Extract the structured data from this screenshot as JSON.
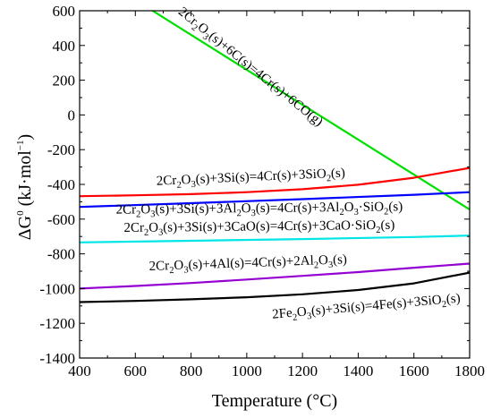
{
  "chart_data": {
    "type": "line",
    "xlabel": "Temperature (°C)",
    "ylabel": "ΔG⁰ (kJ·mol⁻¹)",
    "xlim": [
      400,
      1800
    ],
    "ylim": [
      -1400,
      600
    ],
    "x_ticks": [
      400,
      600,
      800,
      1000,
      1200,
      1400,
      1600,
      1800
    ],
    "y_ticks": [
      -1400,
      -1200,
      -1000,
      -800,
      -600,
      -400,
      -200,
      0,
      200,
      400,
      600
    ],
    "x_tick_labels": [
      "400",
      "600",
      "800",
      "1000",
      "1200",
      "1400",
      "1600",
      "1800"
    ],
    "y_tick_labels": [
      "-1400",
      "-1200",
      "-1000",
      "-800",
      "-600",
      "-400",
      "-200",
      "0",
      "200",
      "400",
      "600"
    ],
    "grid": false,
    "series": [
      {
        "color": "#00e000",
        "x": [
          662,
          1800
        ],
        "y": [
          600,
          -545
        ]
      },
      {
        "color": "#ff0000",
        "x": [
          400,
          600,
          800,
          1000,
          1200,
          1400,
          1600,
          1800
        ],
        "y": [
          -468,
          -463,
          -456,
          -445,
          -428,
          -402,
          -362,
          -305
        ]
      },
      {
        "color": "#0000ff",
        "x": [
          400,
          800,
          1200,
          1600,
          1800
        ],
        "y": [
          -530,
          -508,
          -485,
          -460,
          -445
        ]
      },
      {
        "color": "#00e5e5",
        "x": [
          400,
          800,
          1200,
          1600,
          1800
        ],
        "y": [
          -734,
          -725,
          -715,
          -703,
          -695
        ]
      },
      {
        "color": "#9400d3",
        "x": [
          400,
          600,
          800,
          1000,
          1200,
          1400,
          1600,
          1800
        ],
        "y": [
          -1000,
          -985,
          -968,
          -948,
          -927,
          -905,
          -880,
          -856
        ]
      },
      {
        "color": "#000000",
        "x": [
          400,
          600,
          800,
          1000,
          1200,
          1400,
          1600,
          1800
        ],
        "y": [
          -1078,
          -1071,
          -1062,
          -1050,
          -1033,
          -1008,
          -970,
          -908
        ]
      }
    ],
    "annotations": [
      {
        "parts": [
          [
            "n",
            "2Cr"
          ],
          [
            "b",
            "2"
          ],
          [
            "n",
            "O"
          ],
          [
            "b",
            "3"
          ],
          [
            "n",
            "(s)+6C(s)=4Cr(s)+6CO(g)"
          ]
        ],
        "x": 1005,
        "y": 260,
        "angle": 38.8
      },
      {
        "parts": [
          [
            "n",
            "2Cr"
          ],
          [
            "b",
            "2"
          ],
          [
            "n",
            "O"
          ],
          [
            "b",
            "3"
          ],
          [
            "n",
            "(s)+3Si(s)=4Cr(s)+3SiO"
          ],
          [
            "b",
            "2"
          ],
          [
            "n",
            "(s)"
          ]
        ],
        "x": 1015,
        "y": -380,
        "angle": -2.5
      },
      {
        "parts": [
          [
            "n",
            "2Cr"
          ],
          [
            "b",
            "2"
          ],
          [
            "n",
            "O"
          ],
          [
            "b",
            "3"
          ],
          [
            "n",
            "(s)+3Si(s)+3Al"
          ],
          [
            "b",
            "2"
          ],
          [
            "n",
            "O"
          ],
          [
            "b",
            "3"
          ],
          [
            "n",
            "(s)=4Cr(s)+3Al"
          ],
          [
            "b",
            "2"
          ],
          [
            "n",
            "O"
          ],
          [
            "b",
            "3"
          ],
          [
            "n",
            "·SiO"
          ],
          [
            "b",
            "2"
          ],
          [
            "n",
            "(s)"
          ]
        ],
        "x": 1045,
        "y": -560,
        "angle": -0.6
      },
      {
        "parts": [
          [
            "n",
            "2Cr"
          ],
          [
            "b",
            "2"
          ],
          [
            "n",
            "O"
          ],
          [
            "b",
            "3"
          ],
          [
            "n",
            "(s)+3Si(s)+3CaO(s)=4Cr(s)+3CaO·SiO"
          ],
          [
            "b",
            "2"
          ],
          [
            "n",
            "(s)"
          ]
        ],
        "x": 1045,
        "y": -665,
        "angle": -0.6
      },
      {
        "parts": [
          [
            "n",
            "2Cr"
          ],
          [
            "b",
            "2"
          ],
          [
            "n",
            "O"
          ],
          [
            "b",
            "3"
          ],
          [
            "n",
            "(s)+4Al(s)=4Cr(s)+2Al"
          ],
          [
            "b",
            "2"
          ],
          [
            "n",
            "O"
          ],
          [
            "b",
            "3"
          ],
          [
            "n",
            "(s)"
          ]
        ],
        "x": 1005,
        "y": -875,
        "angle": -2.0
      },
      {
        "parts": [
          [
            "n",
            "2Fe"
          ],
          [
            "b",
            "2"
          ],
          [
            "n",
            "O"
          ],
          [
            "b",
            "3"
          ],
          [
            "n",
            "(s)+3Si(s)=4Fe(s)+3SiO"
          ],
          [
            "b",
            "2"
          ],
          [
            "n",
            "(s)"
          ]
        ],
        "x": 1430,
        "y": -1125,
        "angle": -5.0
      }
    ]
  }
}
